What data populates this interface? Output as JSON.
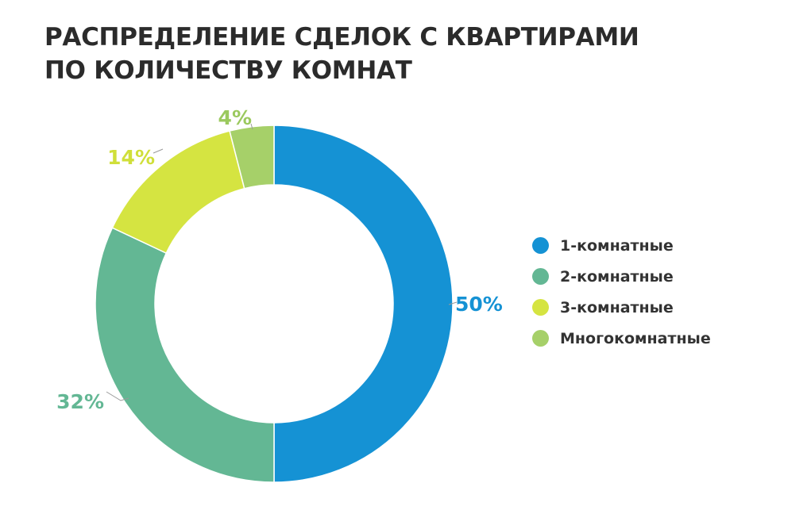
{
  "chart_data": {
    "type": "pie",
    "variant": "donut",
    "title_lines": [
      "РАСПРЕДЕЛЕНИЕ СДЕЛОК С КВАРТИРАМИ",
      "ПО КОЛИЧЕСТВУ КОМНАТ"
    ],
    "categories": [
      "1-комнатные",
      "2-комнатные",
      "3-комнатные",
      "Многокомнатные"
    ],
    "values": [
      50,
      32,
      14,
      4
    ],
    "value_labels": [
      "50%",
      "32%",
      "14%",
      "4%"
    ],
    "colors": [
      "#1592d4",
      "#63b794",
      "#d5e441",
      "#a6d069"
    ],
    "label_colors": [
      "#1592d4",
      "#63b794",
      "#d0df3a",
      "#9bc95e"
    ],
    "legend_position": "right",
    "start_angle": "12 o'clock",
    "direction": "clockwise"
  }
}
